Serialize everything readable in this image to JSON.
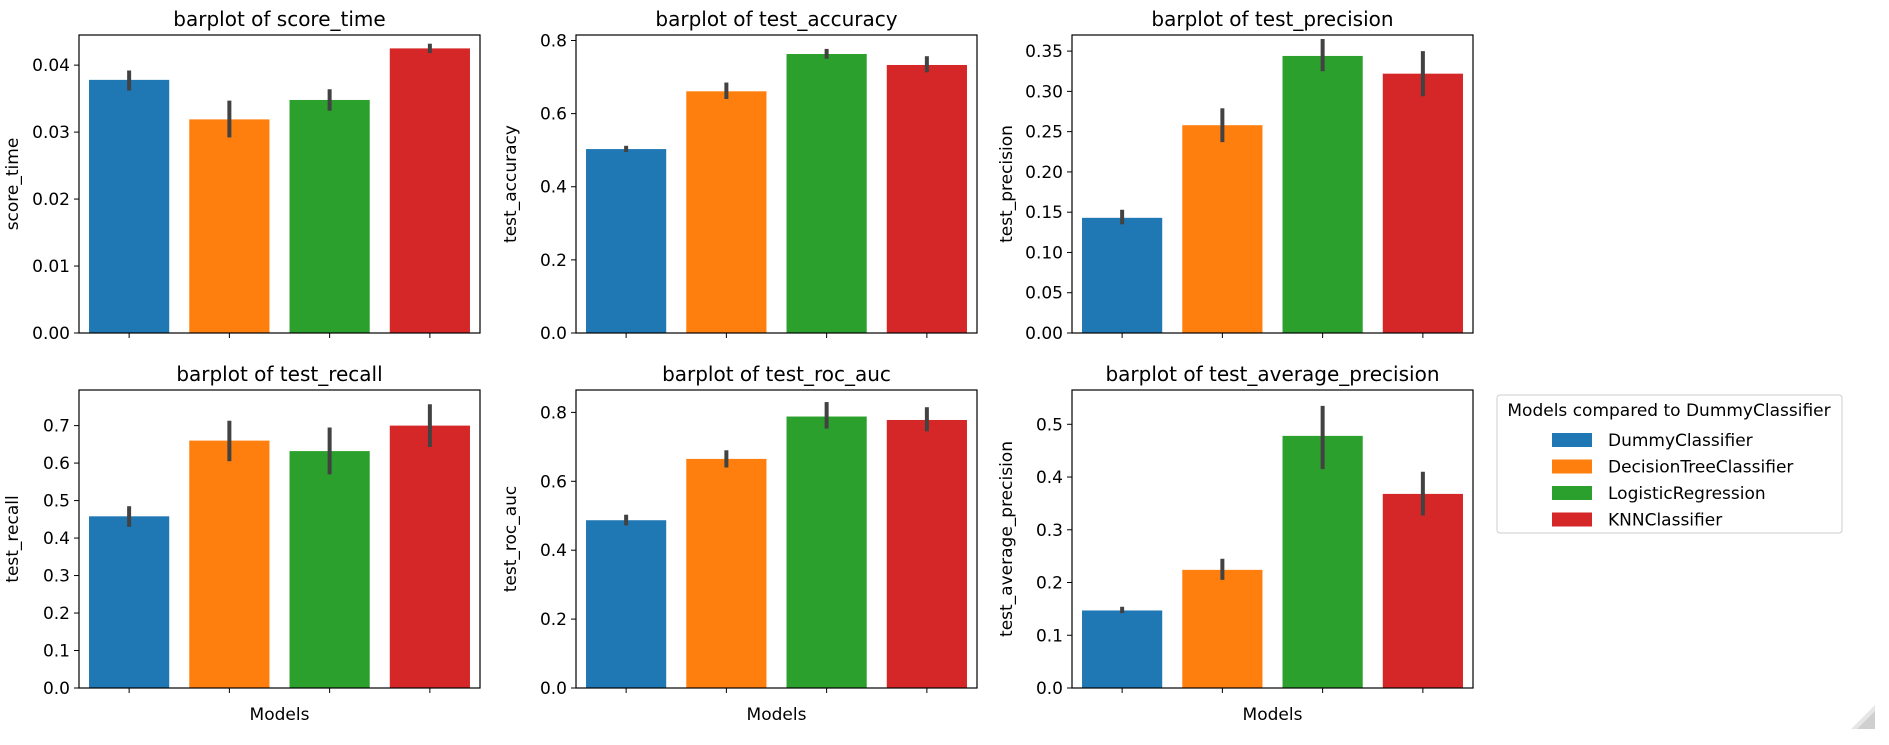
{
  "legend": {
    "title": "Models compared to DummyClassifier",
    "placement": "right",
    "entries": [
      {
        "label": "DummyClassifier",
        "color": "#1f77b4"
      },
      {
        "label": "DecisionTreeClassifier",
        "color": "#ff7f0e"
      },
      {
        "label": "LogisticRegression",
        "color": "#2ca02c"
      },
      {
        "label": "KNNClassifier",
        "color": "#d62728"
      }
    ]
  },
  "chart_data": [
    {
      "type": "bar",
      "title": "barplot of score_time",
      "xlabel": "",
      "ylabel": "score_time",
      "categories": [
        "DummyClassifier",
        "DecisionTreeClassifier",
        "LogisticRegression",
        "KNNClassifier"
      ],
      "values": [
        0.0378,
        0.0319,
        0.0348,
        0.0425
      ],
      "errors_low": [
        0.0362,
        0.0292,
        0.0332,
        0.0418
      ],
      "errors_high": [
        0.0392,
        0.0347,
        0.0364,
        0.0432
      ],
      "ylim": [
        0,
        0.0445
      ],
      "yticks": [
        0.0,
        0.01,
        0.02,
        0.03,
        0.04
      ],
      "ytick_labels": [
        "0.00",
        "0.01",
        "0.02",
        "0.03",
        "0.04"
      ],
      "grid": false
    },
    {
      "type": "bar",
      "title": "barplot of test_accuracy",
      "xlabel": "",
      "ylabel": "test_accuracy",
      "categories": [
        "DummyClassifier",
        "DecisionTreeClassifier",
        "LogisticRegression",
        "KNNClassifier"
      ],
      "values": [
        0.503,
        0.661,
        0.763,
        0.733
      ],
      "errors_low": [
        0.495,
        0.64,
        0.75,
        0.713
      ],
      "errors_high": [
        0.512,
        0.685,
        0.777,
        0.757
      ],
      "ylim": [
        0,
        0.815
      ],
      "yticks": [
        0.0,
        0.2,
        0.4,
        0.6,
        0.8
      ],
      "ytick_labels": [
        "0.0",
        "0.2",
        "0.4",
        "0.6",
        "0.8"
      ],
      "grid": false
    },
    {
      "type": "bar",
      "title": "barplot of test_precision",
      "xlabel": "",
      "ylabel": "test_precision",
      "categories": [
        "DummyClassifier",
        "DecisionTreeClassifier",
        "LogisticRegression",
        "KNNClassifier"
      ],
      "values": [
        0.143,
        0.258,
        0.344,
        0.322
      ],
      "errors_low": [
        0.135,
        0.237,
        0.325,
        0.294
      ],
      "errors_high": [
        0.153,
        0.279,
        0.365,
        0.35
      ],
      "ylim": [
        0,
        0.37
      ],
      "yticks": [
        0.0,
        0.05,
        0.1,
        0.15,
        0.2,
        0.25,
        0.3,
        0.35
      ],
      "ytick_labels": [
        "0.00",
        "0.05",
        "0.10",
        "0.15",
        "0.20",
        "0.25",
        "0.30",
        "0.35"
      ],
      "grid": false
    },
    {
      "type": "bar",
      "title": "barplot of test_recall",
      "xlabel": "Models",
      "ylabel": "test_recall",
      "categories": [
        "DummyClassifier",
        "DecisionTreeClassifier",
        "LogisticRegression",
        "KNNClassifier"
      ],
      "values": [
        0.458,
        0.66,
        0.632,
        0.7
      ],
      "errors_low": [
        0.43,
        0.605,
        0.57,
        0.643
      ],
      "errors_high": [
        0.485,
        0.713,
        0.695,
        0.757
      ],
      "ylim": [
        0,
        0.795
      ],
      "yticks": [
        0.0,
        0.1,
        0.2,
        0.3,
        0.4,
        0.5,
        0.6,
        0.7
      ],
      "ytick_labels": [
        "0.0",
        "0.1",
        "0.2",
        "0.3",
        "0.4",
        "0.5",
        "0.6",
        "0.7"
      ],
      "grid": false
    },
    {
      "type": "bar",
      "title": "barplot of test_roc_auc",
      "xlabel": "Models",
      "ylabel": "test_roc_auc",
      "categories": [
        "DummyClassifier",
        "DecisionTreeClassifier",
        "LogisticRegression",
        "KNNClassifier"
      ],
      "values": [
        0.487,
        0.665,
        0.788,
        0.778
      ],
      "errors_low": [
        0.472,
        0.64,
        0.753,
        0.745
      ],
      "errors_high": [
        0.503,
        0.69,
        0.83,
        0.815
      ],
      "ylim": [
        0,
        0.865
      ],
      "yticks": [
        0.0,
        0.2,
        0.4,
        0.6,
        0.8
      ],
      "ytick_labels": [
        "0.0",
        "0.2",
        "0.4",
        "0.6",
        "0.8"
      ],
      "grid": false
    },
    {
      "type": "bar",
      "title": "barplot of test_average_precision",
      "xlabel": "Models",
      "ylabel": "test_average_precision",
      "categories": [
        "DummyClassifier",
        "DecisionTreeClassifier",
        "LogisticRegression",
        "KNNClassifier"
      ],
      "values": [
        0.147,
        0.224,
        0.478,
        0.368
      ],
      "errors_low": [
        0.142,
        0.205,
        0.415,
        0.327
      ],
      "errors_high": [
        0.154,
        0.245,
        0.535,
        0.41
      ],
      "ylim": [
        0,
        0.565
      ],
      "yticks": [
        0.0,
        0.1,
        0.2,
        0.3,
        0.4,
        0.5
      ],
      "ytick_labels": [
        "0.0",
        "0.1",
        "0.2",
        "0.3",
        "0.4",
        "0.5"
      ],
      "grid": false
    }
  ]
}
